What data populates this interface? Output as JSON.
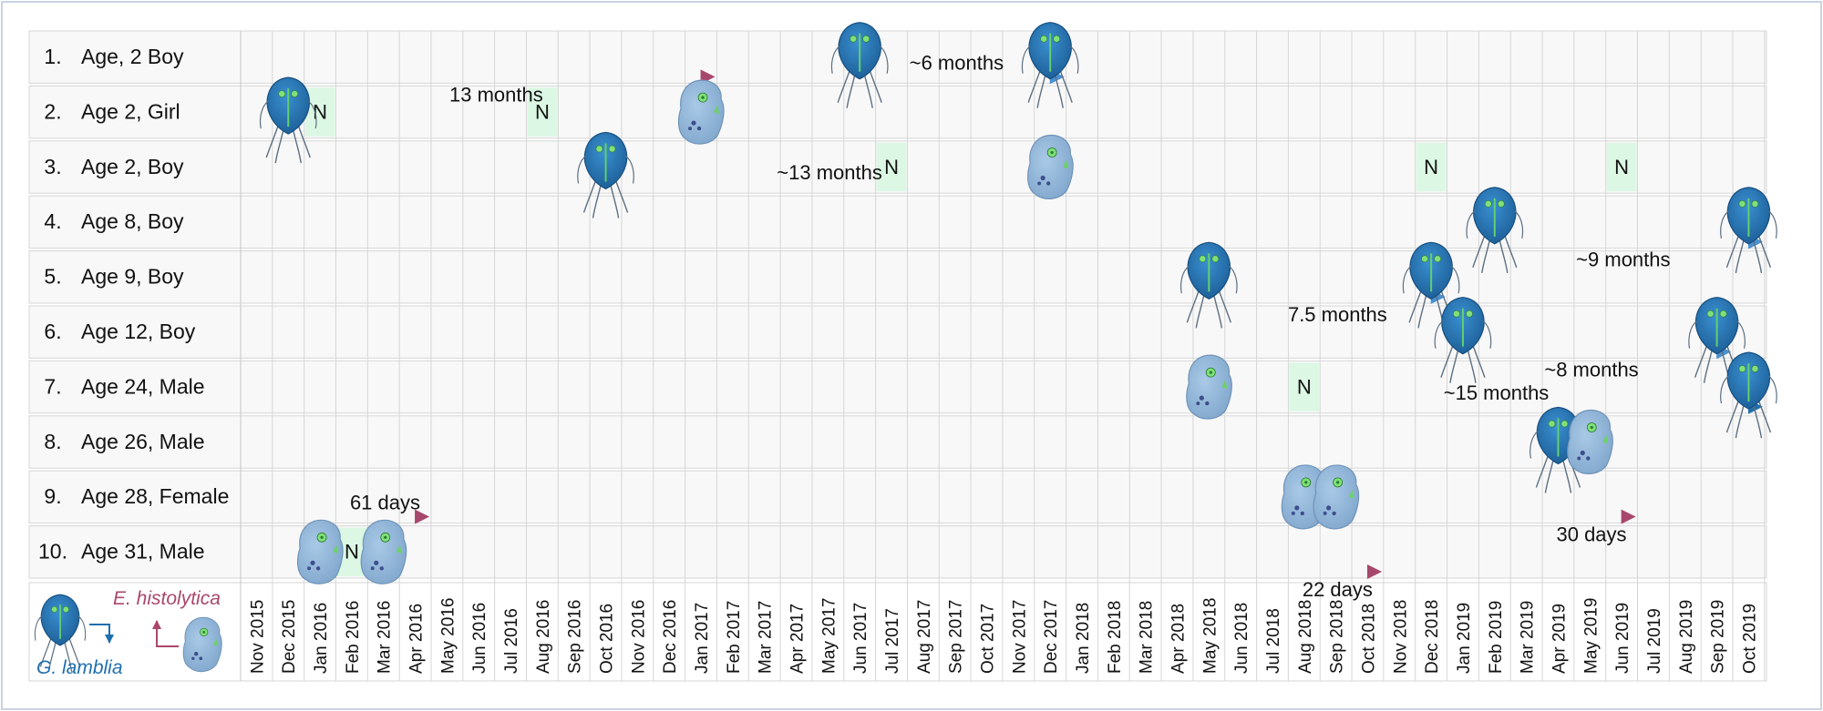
{
  "months": [
    "Nov 2015",
    "Dec 2015",
    "Jan 2016",
    "Feb 2016",
    "Mar 2016",
    "Apr 2016",
    "May 2016",
    "Jun 2016",
    "Jul 2016",
    "Aug 2016",
    "Sep 2016",
    "Oct 2016",
    "Nov 2016",
    "Dec 2016",
    "Jan 2017",
    "Feb 2017",
    "Mar 2017",
    "Apr 2017",
    "May 2017",
    "Jun 2017",
    "Jul 2017",
    "Aug 2017",
    "Sep 2017",
    "Oct 2017",
    "Nov 2017",
    "Dec 2017",
    "Jan 2018",
    "Feb 2018",
    "Mar 2018",
    "Apr 2018",
    "May 2018",
    "Jun 2018",
    "Jul 2018",
    "Aug 2018",
    "Sep 2018",
    "Oct 2018",
    "Nov 2018",
    "Dec 2018",
    "Jan 2019",
    "Feb 2019",
    "Mar 2019",
    "Apr 2019",
    "May 2019",
    "Jun 2019",
    "Jul 2019",
    "Aug 2019",
    "Sep 2019",
    "Oct 2019"
  ],
  "patients": [
    {
      "num": "1.",
      "label": "Age, 2 Boy"
    },
    {
      "num": "2.",
      "label": "Age 2, Girl"
    },
    {
      "num": "3.",
      "label": "Age 2, Boy"
    },
    {
      "num": "4.",
      "label": "Age 8, Boy"
    },
    {
      "num": "5.",
      "label": "Age 9, Boy"
    },
    {
      "num": "6.",
      "label": "Age 12, Boy"
    },
    {
      "num": "7.",
      "label": "Age 24, Male"
    },
    {
      "num": "8.",
      "label": "Age 26, Male"
    },
    {
      "num": "9.",
      "label": "Age 28, Female"
    },
    {
      "num": "10.",
      "label": "Age 31, Male"
    }
  ],
  "negative_symbol": "N",
  "negatives": [
    {
      "row": 2,
      "month": "Jan 2016"
    },
    {
      "row": 2,
      "month": "Aug 2016"
    },
    {
      "row": 3,
      "month": "Jul 2017"
    },
    {
      "row": 3,
      "month": "Dec 2018"
    },
    {
      "row": 3,
      "month": "Jun 2019"
    },
    {
      "row": 7,
      "month": "Aug 2018"
    },
    {
      "row": 10,
      "month": "Feb 2016"
    }
  ],
  "infections": [
    {
      "organism": "giardia",
      "row": 2,
      "month": "Dec 2015",
      "dy": 0
    },
    {
      "organism": "entamoeba",
      "row": 2,
      "month": "Jan 2017",
      "dy": 0
    },
    {
      "organism": "giardia",
      "row": 1,
      "month": "Jun 2017",
      "dy": 0
    },
    {
      "organism": "giardia",
      "row": 1,
      "month": "Dec 2017",
      "dy": 0
    },
    {
      "organism": "giardia",
      "row": 3,
      "month": "Oct 2016",
      "dy": 0
    },
    {
      "organism": "entamoeba",
      "row": 3,
      "month": "Dec 2017",
      "dy": 0
    },
    {
      "organism": "giardia",
      "row": 4,
      "month": "Feb 2019",
      "dy": 0
    },
    {
      "organism": "giardia",
      "row": 4,
      "month": "Oct 2019",
      "dy": 0
    },
    {
      "organism": "giardia",
      "row": 5,
      "month": "May 2018",
      "dy": 0
    },
    {
      "organism": "giardia",
      "row": 5,
      "month": "Dec 2018",
      "dy": 0
    },
    {
      "organism": "giardia",
      "row": 6,
      "month": "Jan 2019",
      "dy": 0
    },
    {
      "organism": "giardia",
      "row": 6,
      "month": "Sep 2019",
      "dy": 0
    },
    {
      "organism": "entamoeba",
      "row": 7,
      "month": "May 2018",
      "dy": 0
    },
    {
      "organism": "giardia",
      "row": 7,
      "month": "Oct 2019",
      "dy": 0
    },
    {
      "organism": "giardia",
      "row": 8,
      "month": "Apr 2019",
      "dy": 0
    },
    {
      "organism": "entamoeba",
      "row": 8,
      "month": "May 2019",
      "dy": 0
    },
    {
      "organism": "entamoeba",
      "row": 9,
      "month": "Aug 2018",
      "dy": 0
    },
    {
      "organism": "entamoeba",
      "row": 9,
      "month": "Sep 2018",
      "dy": 0
    },
    {
      "organism": "entamoeba",
      "row": 10,
      "month": "Jan 2016",
      "dy": 0
    },
    {
      "organism": "entamoeba",
      "row": 10,
      "month": "Mar 2016",
      "dy": 0
    }
  ],
  "intervals": [
    {
      "row": 1,
      "from": "Dec 2015",
      "to": "Jan 2017",
      "text": "13 months",
      "label_pos": "below",
      "direction": "gl-to-eh"
    },
    {
      "row": 1,
      "from": "Jun 2017",
      "to": "Dec 2017",
      "text": "~6 months",
      "label_pos": "above",
      "direction": "gl-to-gl"
    },
    {
      "row": 3,
      "from": "Oct 2016",
      "to": "Dec 2017",
      "text": "~13 months",
      "label_pos": "above",
      "direction": "gl-to-eh"
    },
    {
      "row": 4,
      "from": "Feb 2019",
      "to": "Oct 2019",
      "text": "~9 months",
      "label_pos": "below",
      "direction": "gl-to-gl"
    },
    {
      "row": 5,
      "from": "Jun 2018",
      "to": "Dec 2018",
      "text": "7.5 months",
      "label_pos": "below",
      "direction": "gl-to-gl"
    },
    {
      "row": 6,
      "from": "Jan 2019",
      "to": "Sep 2019",
      "text": "~8 months",
      "label_pos": "below",
      "direction": "gl-to-gl"
    },
    {
      "row": 7,
      "from": "Jun 2018",
      "to": "Oct 2019",
      "text": "~15 months",
      "label_pos": "above",
      "direction": "eh-to-gl"
    },
    {
      "row": 9,
      "from": "Feb 2016",
      "to": "Apr 2016",
      "text": "61 days",
      "label_pos": "above",
      "direction": "eh-to-eh"
    },
    {
      "row": 9,
      "from": "Apr 2019",
      "to": "Jun 2019",
      "text": "30 days",
      "label_pos": "below",
      "direction": "gl-to-eh"
    },
    {
      "row": 10,
      "from": "Aug 2018",
      "to": "Oct 2018",
      "text": "22 days",
      "label_pos": "below",
      "direction": "eh-to-eh"
    }
  ],
  "legend": {
    "giardia_label": "G. lamblia",
    "entamoeba_label": "E. histolytica"
  },
  "colors": {
    "giardia_blue": "#1f6fad",
    "giardia_arrow": "#4a90d0",
    "entamoeba_red": "#a8476c",
    "transition_green": "#3bbf9a",
    "negative_bg": "#dcf8e4",
    "grid": "#d6d6d6",
    "row_bg": "#f8f8f8"
  }
}
